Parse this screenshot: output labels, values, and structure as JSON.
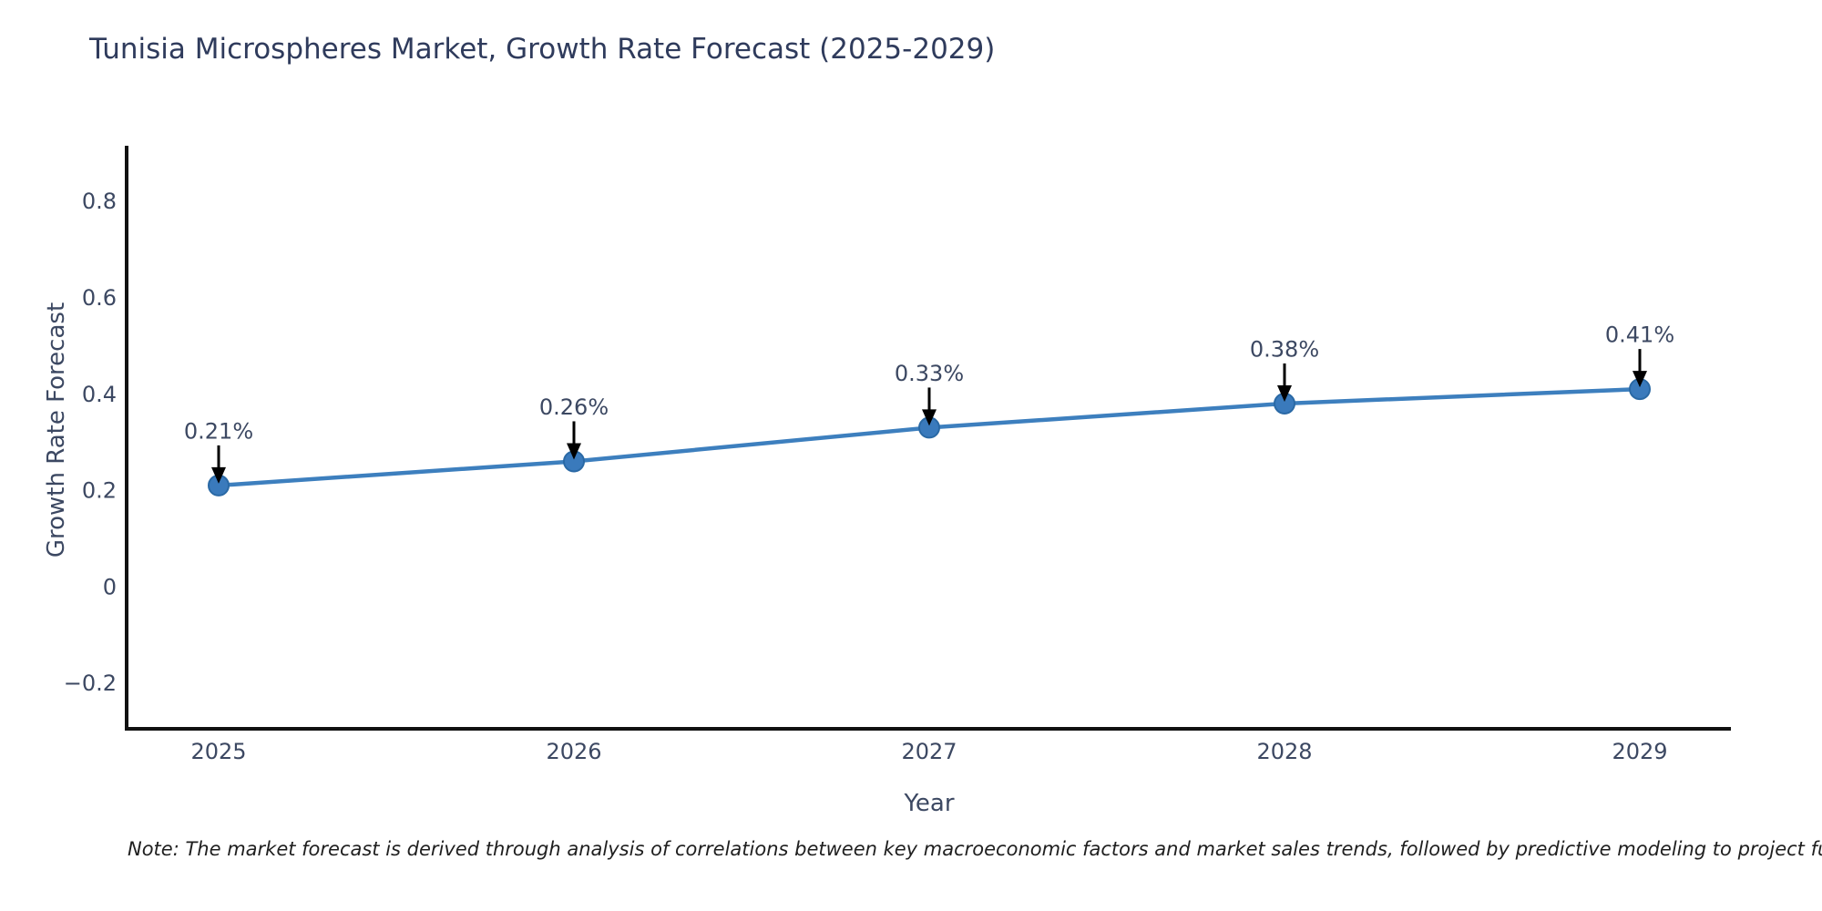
{
  "chart_data": {
    "type": "line",
    "title": "Tunisia Microspheres Market, Growth Rate Forecast (2025-2029)",
    "xlabel": "Year",
    "ylabel": "Growth Rate Forecast",
    "categories": [
      "2025",
      "2026",
      "2027",
      "2028",
      "2029"
    ],
    "series": [
      {
        "name": "Growth Rate Forecast",
        "values": [
          0.21,
          0.26,
          0.33,
          0.38,
          0.41
        ],
        "point_labels": [
          "0.21%",
          "0.26%",
          "0.33%",
          "0.38%",
          "0.41%"
        ]
      }
    ],
    "yticks": [
      -0.2,
      0,
      0.2,
      0.4,
      0.6,
      0.8
    ],
    "ytick_labels": [
      "−0.2",
      "0",
      "0.2",
      "0.4",
      "0.6",
      "0.8"
    ],
    "ylim": [
      -0.3,
      0.92
    ],
    "grid": false,
    "legend": "none",
    "annotation_style": "value label above point with black down arrow",
    "colors": {
      "line": "#3d7fbe",
      "marker_fill": "#3a7abc",
      "marker_edge": "#2a69a5",
      "axis_spine": "#111111",
      "tick_text": "#3c4862",
      "title_text": "#2f3b5c",
      "arrow": "#000000"
    }
  },
  "note": "Note: The market forecast is derived through analysis of correlations between key macroeconomic factors and market sales trends, followed by predictive modeling to project future sa"
}
